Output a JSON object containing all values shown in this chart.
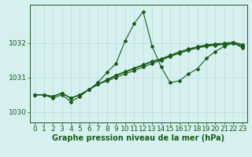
{
  "title": "Graphe pression niveau de la mer (hPa)",
  "bg_color": "#d6f0f0",
  "grid_color": "#b8dada",
  "line_color": "#1a5c1a",
  "xlim": [
    -0.5,
    23.5
  ],
  "ylim": [
    1029.7,
    1033.1
  ],
  "yticks": [
    1030,
    1031,
    1032
  ],
  "xticks": [
    0,
    1,
    2,
    3,
    4,
    5,
    6,
    7,
    8,
    9,
    10,
    11,
    12,
    13,
    14,
    15,
    16,
    17,
    18,
    19,
    20,
    21,
    22,
    23
  ],
  "spiky_line": [
    1030.5,
    1030.5,
    1030.4,
    1030.5,
    1030.3,
    1030.45,
    1030.65,
    1030.85,
    1031.15,
    1031.4,
    1032.05,
    1032.55,
    1032.9,
    1031.9,
    1031.3,
    1030.85,
    1030.9,
    1031.1,
    1031.25,
    1031.55,
    1031.75,
    1031.9,
    1032.0,
    1031.85
  ],
  "parallel_lines": [
    [
      1030.5,
      1030.5,
      1030.45,
      1030.55,
      1030.4,
      1030.5,
      1030.65,
      1030.8,
      1030.9,
      1031.0,
      1031.1,
      1031.2,
      1031.3,
      1031.4,
      1031.5,
      1031.6,
      1031.7,
      1031.78,
      1031.85,
      1031.9,
      1031.93,
      1031.95,
      1031.98,
      1031.9
    ],
    [
      1030.5,
      1030.5,
      1030.45,
      1030.55,
      1030.4,
      1030.5,
      1030.65,
      1030.8,
      1030.92,
      1031.05,
      1031.15,
      1031.25,
      1031.35,
      1031.45,
      1031.52,
      1031.62,
      1031.72,
      1031.8,
      1031.87,
      1031.92,
      1031.95,
      1031.97,
      1032.0,
      1031.93
    ],
    [
      1030.5,
      1030.5,
      1030.45,
      1030.55,
      1030.4,
      1030.5,
      1030.65,
      1030.8,
      1030.94,
      1031.07,
      1031.17,
      1031.27,
      1031.37,
      1031.47,
      1031.54,
      1031.64,
      1031.74,
      1031.82,
      1031.89,
      1031.94,
      1031.97,
      1031.99,
      1032.02,
      1031.95
    ]
  ],
  "marker": "D",
  "markersize": 2.0,
  "linewidth": 0.8,
  "xlabel_fontsize": 7,
  "tick_fontsize": 6.5
}
